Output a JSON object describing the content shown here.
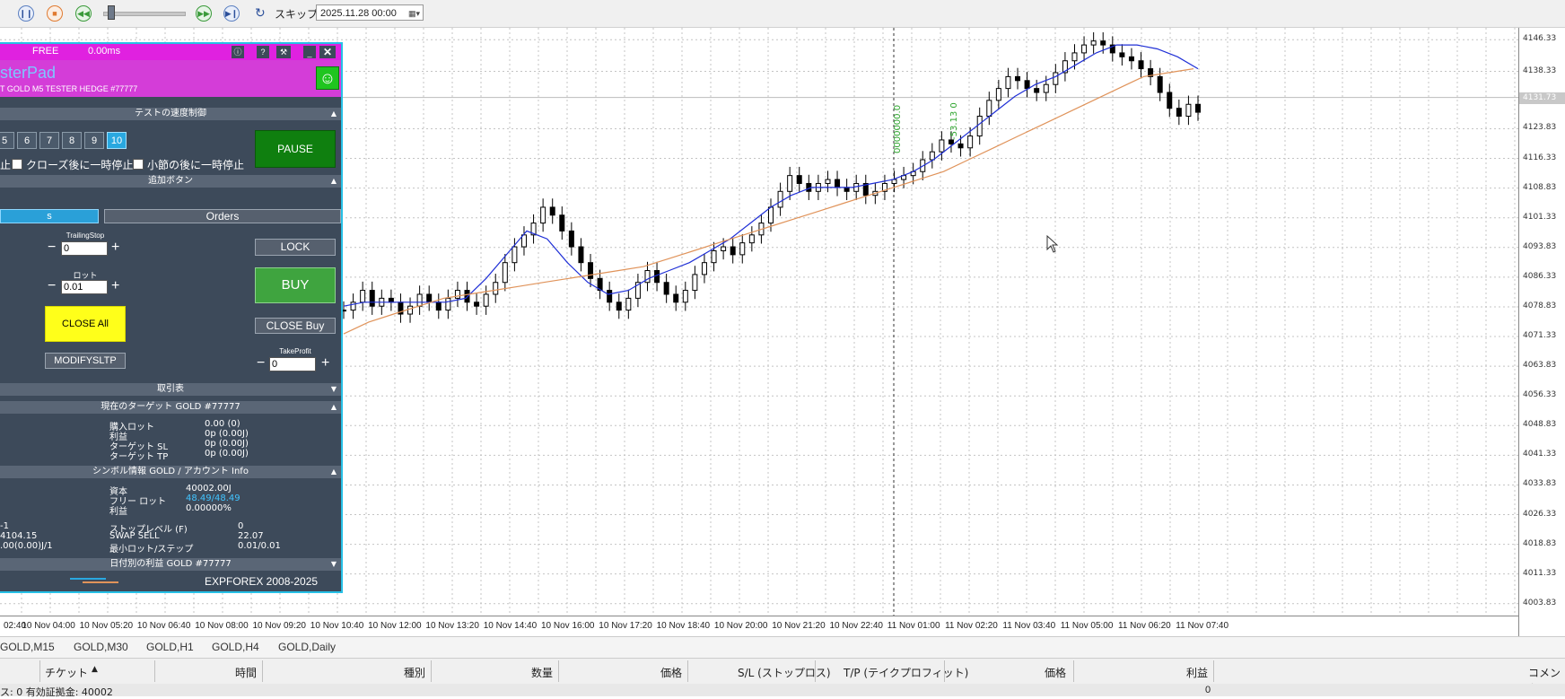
{
  "toolbar": {
    "skip_label": "スキップ",
    "date_value": "2025.11.28 00:00"
  },
  "price_axis": {
    "ticks": [
      "4146.33",
      "4138.33",
      "4123.83",
      "4116.33",
      "4108.83",
      "4101.33",
      "4093.83",
      "4086.33",
      "4078.83",
      "4071.33",
      "4063.83",
      "4056.33",
      "4048.83",
      "4041.33",
      "4033.83",
      "4026.33",
      "4018.83",
      "4011.33",
      "4003.83"
    ],
    "current_price": "4131.73"
  },
  "time_axis": {
    "ticks": [
      "02:40",
      "10 Nov 04:00",
      "10 Nov 05:20",
      "10 Nov 06:40",
      "10 Nov 08:00",
      "10 Nov 09:20",
      "10 Nov 10:40",
      "10 Nov 12:00",
      "10 Nov 13:20",
      "10 Nov 14:40",
      "10 Nov 16:00",
      "10 Nov 17:20",
      "10 Nov 18:40",
      "10 Nov 20:00",
      "10 Nov 21:20",
      "10 Nov 22:40",
      "11 Nov 01:00",
      "11 Nov 02:20",
      "11 Nov 03:40",
      "11 Nov 05:00",
      "11 Nov 06:20",
      "11 Nov 07:40"
    ]
  },
  "chart_data": {
    "type": "candlestick",
    "series": [
      {
        "kind": "candles",
        "values": [
          4078,
          4080,
          4083,
          4079,
          4081,
          4080,
          4077,
          4079,
          4082,
          4080,
          4078,
          4081,
          4083,
          4080,
          4079,
          4082,
          4085,
          4090,
          4094,
          4097,
          4100,
          4104,
          4102,
          4098,
          4094,
          4090,
          4086,
          4083,
          4080,
          4078,
          4081,
          4085,
          4088,
          4085,
          4082,
          4080,
          4083,
          4087,
          4090,
          4093,
          4094,
          4092,
          4095,
          4097,
          4100,
          4104,
          4108,
          4112,
          4110,
          4108,
          4110,
          4111,
          4109,
          4108,
          4110,
          4107,
          4108,
          4110,
          4111,
          4112,
          4113,
          4116,
          4118,
          4121,
          4120,
          4119,
          4122,
          4127,
          4131,
          4134,
          4137,
          4136,
          4134,
          4133,
          4135,
          4138,
          4141,
          4143,
          4145,
          4146,
          4145,
          4143,
          4142,
          4141,
          4139,
          4137,
          4133,
          4129,
          4127,
          4130,
          4128
        ]
      },
      {
        "kind": "ma",
        "color": "#1f2fd6",
        "values": [
          4079,
          4080,
          4080,
          4080,
          4080,
          4080,
          4081,
          4086,
          4092,
          4098,
          4096,
          4090,
          4085,
          4082,
          4083,
          4086,
          4088,
          4090,
          4093,
          4096,
          4100,
          4104,
          4107,
          4109,
          4109,
          4109,
          4110,
          4111,
          4113,
          4116,
          4120,
          4124,
          4128,
          4132,
          4135,
          4137,
          4140,
          4143,
          4145,
          4145,
          4144,
          4142,
          4139
        ]
      },
      {
        "kind": "ma",
        "color": "#e0935a",
        "values": [
          4072,
          4075,
          4077,
          4079,
          4081,
          4082,
          4083,
          4084,
          4085,
          4086,
          4087,
          4088,
          4089,
          4091,
          4093,
          4095,
          4097,
          4099,
          4101,
          4103,
          4105,
          4107,
          4109,
          4111,
          4113,
          4116,
          4119,
          4122,
          4125,
          4128,
          4131,
          4134,
          4137,
          4138,
          4139
        ]
      }
    ],
    "annotations": [
      "0000000.0",
      "-53.13 0"
    ],
    "ylim": [
      4000.83,
      4149.33
    ],
    "grid": true
  },
  "panel": {
    "header_free": "FREE",
    "header_ms": "0.00ms",
    "title": "sterPad",
    "subtitle": "T GOLD M5 TESTER HEDGE #77777",
    "sec_speed": "テストの速度制御",
    "speed_buttons": [
      "5",
      "6",
      "7",
      "8",
      "9",
      "10"
    ],
    "pause_label": "PAUSE",
    "cb_pre": "止",
    "cb1_label": "クローズ後に一時停止",
    "cb2_label": "小節の後に一時停止",
    "sec_add": "追加ボタン",
    "tab_left": "s",
    "tab_orders": "Orders",
    "trailing_label": "TrailingStop",
    "trailing_value": "0",
    "lock_label": "LOCK",
    "lot_label": "ロット",
    "lot_value": "0.01",
    "buy_label": "BUY",
    "close_all_label": "CLOSE All",
    "close_buy_label": "CLOSE Buy",
    "modify_label": "MODIFYSLTP",
    "tp_label": "TakeProfit",
    "tp_value": "0",
    "sec_table": "取引表",
    "sec_target": "現在のターゲット GOLD #77777",
    "target_rows": [
      {
        "k": "購入ロット",
        "v": "0.00 (0)"
      },
      {
        "k": "利益",
        "v": "0p (0.00J)"
      },
      {
        "k": "ターゲット SL",
        "v": "0p (0.00J)"
      },
      {
        "k": "ターゲット TP",
        "v": "0p (0.00J)"
      }
    ],
    "sec_symbol": "シンボル情報 GOLD / アカウント Info",
    "sym_rows": [
      {
        "k": "資本",
        "v": "40002.00J"
      },
      {
        "k": "フリー ロット",
        "v": "48.49/48.49"
      },
      {
        "k": "利益",
        "v": "0.00000%"
      }
    ],
    "left_vals": [
      "-1",
      "4104.15",
      ".00(0.00)J/1"
    ],
    "stop_rows": [
      {
        "k": "ストップレベル (F)",
        "v": "0"
      },
      {
        "k": "SWAP SELL",
        "v": "22.07"
      },
      {
        "k": "最小ロット/ステップ",
        "v": "0.01/0.01"
      }
    ],
    "sec_daily": "日付別の利益 GOLD #77777",
    "footer": "EXPFOREX 2008-2025"
  },
  "symbol_tabs": [
    "GOLD,M15",
    "GOLD,M30",
    "GOLD,H1",
    "GOLD,H4",
    "GOLD,Daily"
  ],
  "columns": [
    "チケット",
    "時間",
    "種別",
    "数量",
    "価格",
    "S/L (ストップロス)",
    "T/P (テイクプロフィット)",
    "価格",
    "利益",
    "コメント"
  ],
  "status": {
    "left": "ス: 0  有効証拠金: 40002",
    "profit": "0"
  }
}
